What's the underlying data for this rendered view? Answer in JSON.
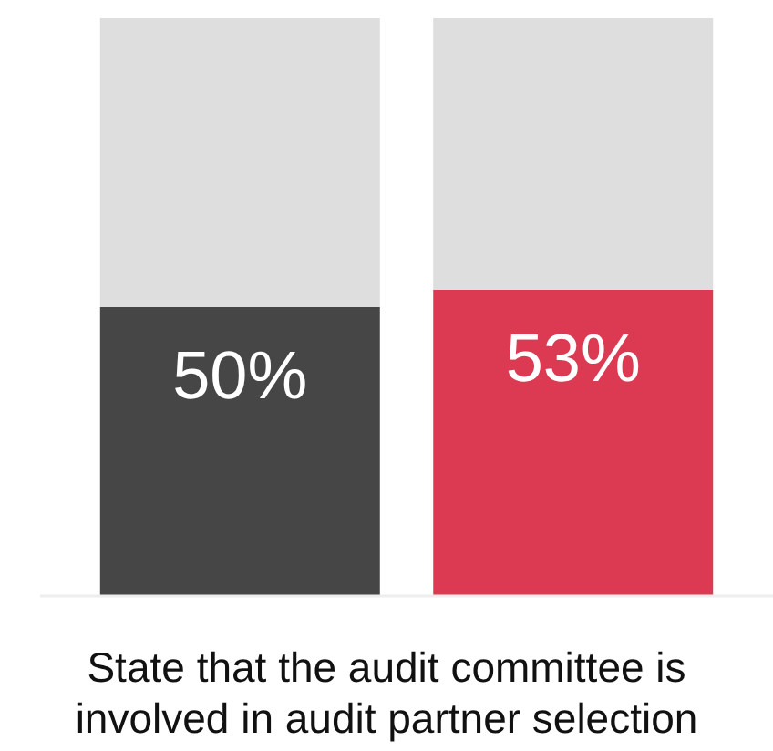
{
  "chart_data": {
    "type": "bar",
    "stacked": true,
    "categories": [
      null,
      null
    ],
    "xlabel": "State that the audit committee is involved in audit partner selection",
    "ylim": [
      0,
      100
    ],
    "series": [
      {
        "colors": [
          "#464646",
          "#dc3a52"
        ],
        "values": [
          50,
          53
        ],
        "value_labels": [
          "50%",
          "53%"
        ]
      },
      {
        "color": "#dedede",
        "values": [
          50,
          47
        ]
      }
    ]
  }
}
